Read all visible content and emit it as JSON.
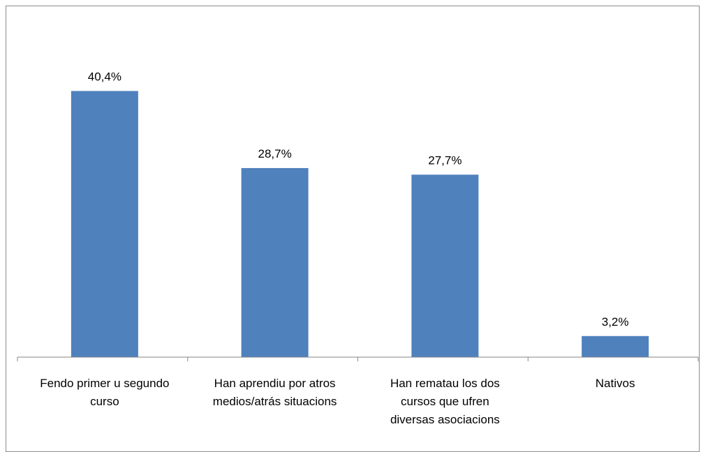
{
  "chart_data": {
    "type": "bar",
    "categories": [
      [
        "Fendo primer u segundo",
        "curso"
      ],
      [
        "Han aprendiu por atros",
        "medios/atrás situacions"
      ],
      [
        "Han rematau los dos",
        "cursos que ufren",
        "diversas asociacions"
      ],
      [
        "Nativos"
      ]
    ],
    "values": [
      40.4,
      28.7,
      27.7,
      3.2
    ],
    "data_labels": [
      "40,4%",
      "28,7%",
      "27,7%",
      "3,2%"
    ],
    "ylim": [
      0,
      45
    ],
    "grid": false,
    "legend": "none",
    "bar_color": "#4f81bd",
    "axis_color": "#868686"
  }
}
